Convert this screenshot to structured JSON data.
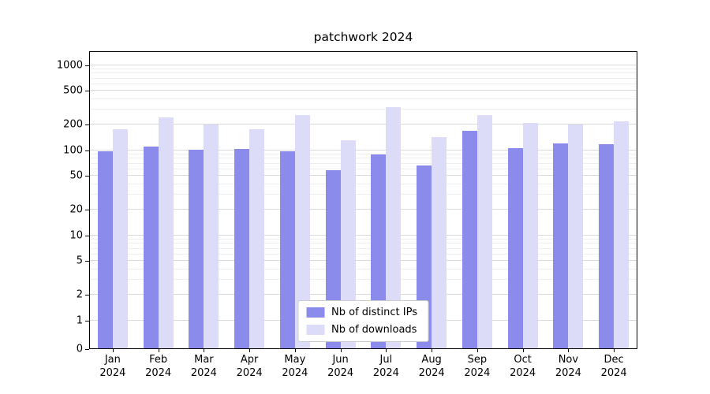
{
  "title": "patchwork 2024",
  "chart_data": {
    "type": "bar",
    "title": "patchwork 2024",
    "categories": [
      "Jan 2024",
      "Feb 2024",
      "Mar 2024",
      "Apr 2024",
      "May 2024",
      "Jun 2024",
      "Jul 2024",
      "Aug 2024",
      "Sep 2024",
      "Oct 2024",
      "Nov 2024",
      "Dec 2024"
    ],
    "series": [
      {
        "name": "Nb of distinct IPs",
        "color": "#8b8bec",
        "values": [
          96,
          108,
          100,
          101,
          95,
          57,
          88,
          65,
          168,
          105,
          118,
          115
        ]
      },
      {
        "name": "Nb of downloads",
        "color": "#dcdcf9",
        "values": [
          172,
          240,
          196,
          172,
          252,
          128,
          318,
          140,
          252,
          205,
          196,
          215
        ]
      }
    ],
    "yscale": "symlog",
    "yticks": [
      0,
      1,
      2,
      5,
      10,
      20,
      50,
      100,
      200,
      500,
      1000
    ],
    "ylim": [
      0,
      1400
    ],
    "grid": "horizontal",
    "legend_position": "lower center inside"
  }
}
